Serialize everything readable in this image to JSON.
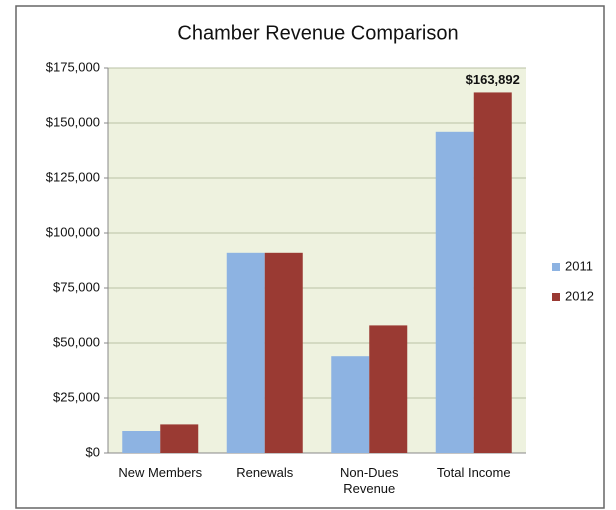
{
  "chart_data": {
    "type": "bar",
    "title": "Chamber Revenue Comparison",
    "categories": [
      "New Members",
      "Renewals",
      "Non-Dues Revenue",
      "Total Income"
    ],
    "series": [
      {
        "name": "2011",
        "color": "#8db3e2",
        "values": [
          10000,
          91000,
          44000,
          146000
        ]
      },
      {
        "name": "2012",
        "color": "#9a3a33",
        "values": [
          13000,
          91000,
          58000,
          163892
        ],
        "value_labels": [
          null,
          null,
          null,
          "$163,892"
        ]
      }
    ],
    "ylim": [
      0,
      175000
    ],
    "yticks": [
      {
        "value": 0,
        "label": "$0"
      },
      {
        "value": 25000,
        "label": "$25,000"
      },
      {
        "value": 50000,
        "label": "$50,000"
      },
      {
        "value": 75000,
        "label": "$75,000"
      },
      {
        "value": 100000,
        "label": "$100,000"
      },
      {
        "value": 125000,
        "label": "$125,000"
      },
      {
        "value": 150000,
        "label": "$150,000"
      },
      {
        "value": 175000,
        "label": "$175,000"
      }
    ],
    "grid": true,
    "legend": "right"
  }
}
